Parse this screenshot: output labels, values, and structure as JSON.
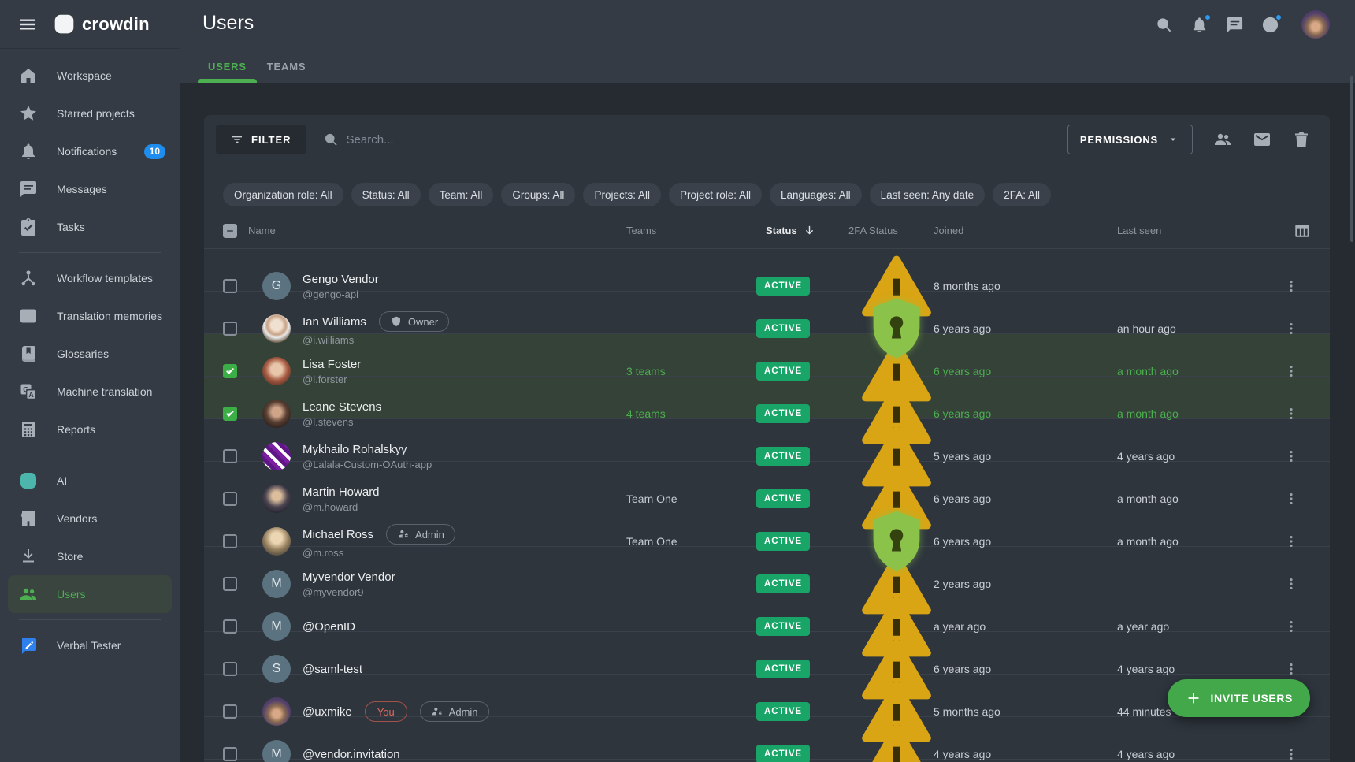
{
  "brand": {
    "name": "crowdin"
  },
  "page": {
    "title": "Users",
    "tabs": [
      {
        "label": "USERS",
        "active": true
      },
      {
        "label": "TEAMS",
        "active": false
      }
    ]
  },
  "sidebar": {
    "items": [
      {
        "label": "Workspace",
        "icon": "home-icon"
      },
      {
        "label": "Starred projects",
        "icon": "star-icon"
      },
      {
        "label": "Notifications",
        "icon": "bell-icon",
        "badge": "10"
      },
      {
        "label": "Messages",
        "icon": "chat-icon"
      },
      {
        "label": "Tasks",
        "icon": "tasks-icon",
        "divider_after": true
      },
      {
        "label": "Workflow templates",
        "icon": "workflow-icon"
      },
      {
        "label": "Translation memories",
        "icon": "translation-memory-icon"
      },
      {
        "label": "Glossaries",
        "icon": "glossary-icon"
      },
      {
        "label": "Machine translation",
        "icon": "machine-translation-icon"
      },
      {
        "label": "Reports",
        "icon": "reports-icon",
        "divider_after": true
      },
      {
        "label": "AI",
        "icon": "ai-icon",
        "icon_class": "ico-teal"
      },
      {
        "label": "Vendors",
        "icon": "vendors-icon"
      },
      {
        "label": "Store",
        "icon": "store-icon"
      },
      {
        "label": "Users",
        "icon": "users-icon",
        "active": true,
        "divider_after": true
      },
      {
        "label": "Verbal Tester",
        "icon": "verbal-tester-icon",
        "icon_class": "ico-raw"
      }
    ]
  },
  "toolbar": {
    "filter_label": "FILTER",
    "search_placeholder": "Search...",
    "permissions_label": "PERMISSIONS"
  },
  "filter_chips": [
    "Organization role: All",
    "Status: All",
    "Team: All",
    "Groups: All",
    "Projects: All",
    "Project role: All",
    "Languages: All",
    "Last seen: Any date",
    "2FA: All"
  ],
  "table": {
    "columns": {
      "name": "Name",
      "teams": "Teams",
      "status": "Status",
      "tfa": "2FA Status",
      "joined": "Joined",
      "last_seen": "Last seen"
    },
    "sorted_column": "Status",
    "rows": [
      {
        "name": "Gengo Vendor",
        "username": "@gengo-api",
        "avatar": {
          "kind": "letter",
          "letter": "G"
        },
        "badges": [],
        "teams": "",
        "status": "ACTIVE",
        "tfa": "warning",
        "joined": "8 months ago",
        "last_seen": "",
        "checked": false,
        "selected": false
      },
      {
        "name": "Ian Williams",
        "username": "@i.williams",
        "avatar": {
          "kind": "photo",
          "photo": "ian"
        },
        "badges": [
          {
            "label": "Owner",
            "icon": "shield-check-icon",
            "style": "default"
          }
        ],
        "teams": "",
        "status": "ACTIVE",
        "tfa": "shield",
        "joined": "6 years ago",
        "last_seen": "an hour ago",
        "checked": false,
        "selected": false
      },
      {
        "name": "Lisa Foster",
        "username": "@l.forster",
        "avatar": {
          "kind": "photo",
          "photo": "lisa"
        },
        "badges": [],
        "teams": "3 teams",
        "status": "ACTIVE",
        "tfa": "warning",
        "joined": "6 years ago",
        "last_seen": "a month ago",
        "checked": true,
        "selected": true
      },
      {
        "name": "Leane Stevens",
        "username": "@l.stevens",
        "avatar": {
          "kind": "photo",
          "photo": "leane"
        },
        "badges": [],
        "teams": "4 teams",
        "status": "ACTIVE",
        "tfa": "warning",
        "joined": "6 years ago",
        "last_seen": "a month ago",
        "checked": true,
        "selected": true
      },
      {
        "name": "Mykhailo Rohalskyy",
        "username": "@Lalala-Custom-OAuth-app",
        "avatar": {
          "kind": "photo",
          "photo": "mykhailo"
        },
        "badges": [],
        "teams": "",
        "status": "ACTIVE",
        "tfa": "warning",
        "joined": "5 years ago",
        "last_seen": "4 years ago",
        "checked": false,
        "selected": false
      },
      {
        "name": "Martin Howard",
        "username": "@m.howard",
        "avatar": {
          "kind": "photo",
          "photo": "martin"
        },
        "badges": [],
        "teams": "Team One",
        "status": "ACTIVE",
        "tfa": "warning",
        "joined": "6 years ago",
        "last_seen": "a month ago",
        "checked": false,
        "selected": false
      },
      {
        "name": "Michael Ross",
        "username": "@m.ross",
        "avatar": {
          "kind": "photo",
          "photo": "michael"
        },
        "badges": [
          {
            "label": "Admin",
            "icon": "admin-icon",
            "style": "default"
          }
        ],
        "teams": "Team One",
        "status": "ACTIVE",
        "tfa": "shield",
        "joined": "6 years ago",
        "last_seen": "a month ago",
        "checked": false,
        "selected": false
      },
      {
        "name": "Myvendor Vendor",
        "username": "@myvendor9",
        "avatar": {
          "kind": "letter",
          "letter": "M"
        },
        "badges": [],
        "teams": "",
        "status": "ACTIVE",
        "tfa": "warning",
        "joined": "2 years ago",
        "last_seen": "",
        "checked": false,
        "selected": false
      },
      {
        "name": "@OpenID",
        "username": "",
        "avatar": {
          "kind": "letter",
          "letter": "M"
        },
        "badges": [],
        "teams": "",
        "status": "ACTIVE",
        "tfa": "warning",
        "joined": "a year ago",
        "last_seen": "a year ago",
        "checked": false,
        "selected": false
      },
      {
        "name": "@saml-test",
        "username": "",
        "avatar": {
          "kind": "letter",
          "letter": "S"
        },
        "badges": [],
        "teams": "",
        "status": "ACTIVE",
        "tfa": "warning",
        "joined": "6 years ago",
        "last_seen": "4 years ago",
        "checked": false,
        "selected": false
      },
      {
        "name": "@uxmike",
        "username": "",
        "avatar": {
          "kind": "photo",
          "photo": "uxmike"
        },
        "badges": [
          {
            "label": "You",
            "style": "accent"
          },
          {
            "label": "Admin",
            "icon": "admin-icon",
            "style": "default"
          }
        ],
        "teams": "",
        "status": "ACTIVE",
        "tfa": "warning",
        "joined": "5 months ago",
        "last_seen": "44 minutes",
        "checked": false,
        "selected": false
      },
      {
        "name": "@vendor.invitation",
        "username": "",
        "avatar": {
          "kind": "letter",
          "letter": "M"
        },
        "badges": [],
        "teams": "",
        "status": "ACTIVE",
        "tfa": "warning",
        "joined": "4 years ago",
        "last_seen": "4 years ago",
        "checked": false,
        "selected": false
      }
    ]
  },
  "invite_button": {
    "label": "INVITE USERS"
  },
  "colors": {
    "accent_green": "#4caf50",
    "status_active": "#18a567",
    "warning_amber": "#d9a514",
    "shield_green": "#8bc34a",
    "notification_blue": "#1f8ded",
    "selected_row": "#344238"
  }
}
